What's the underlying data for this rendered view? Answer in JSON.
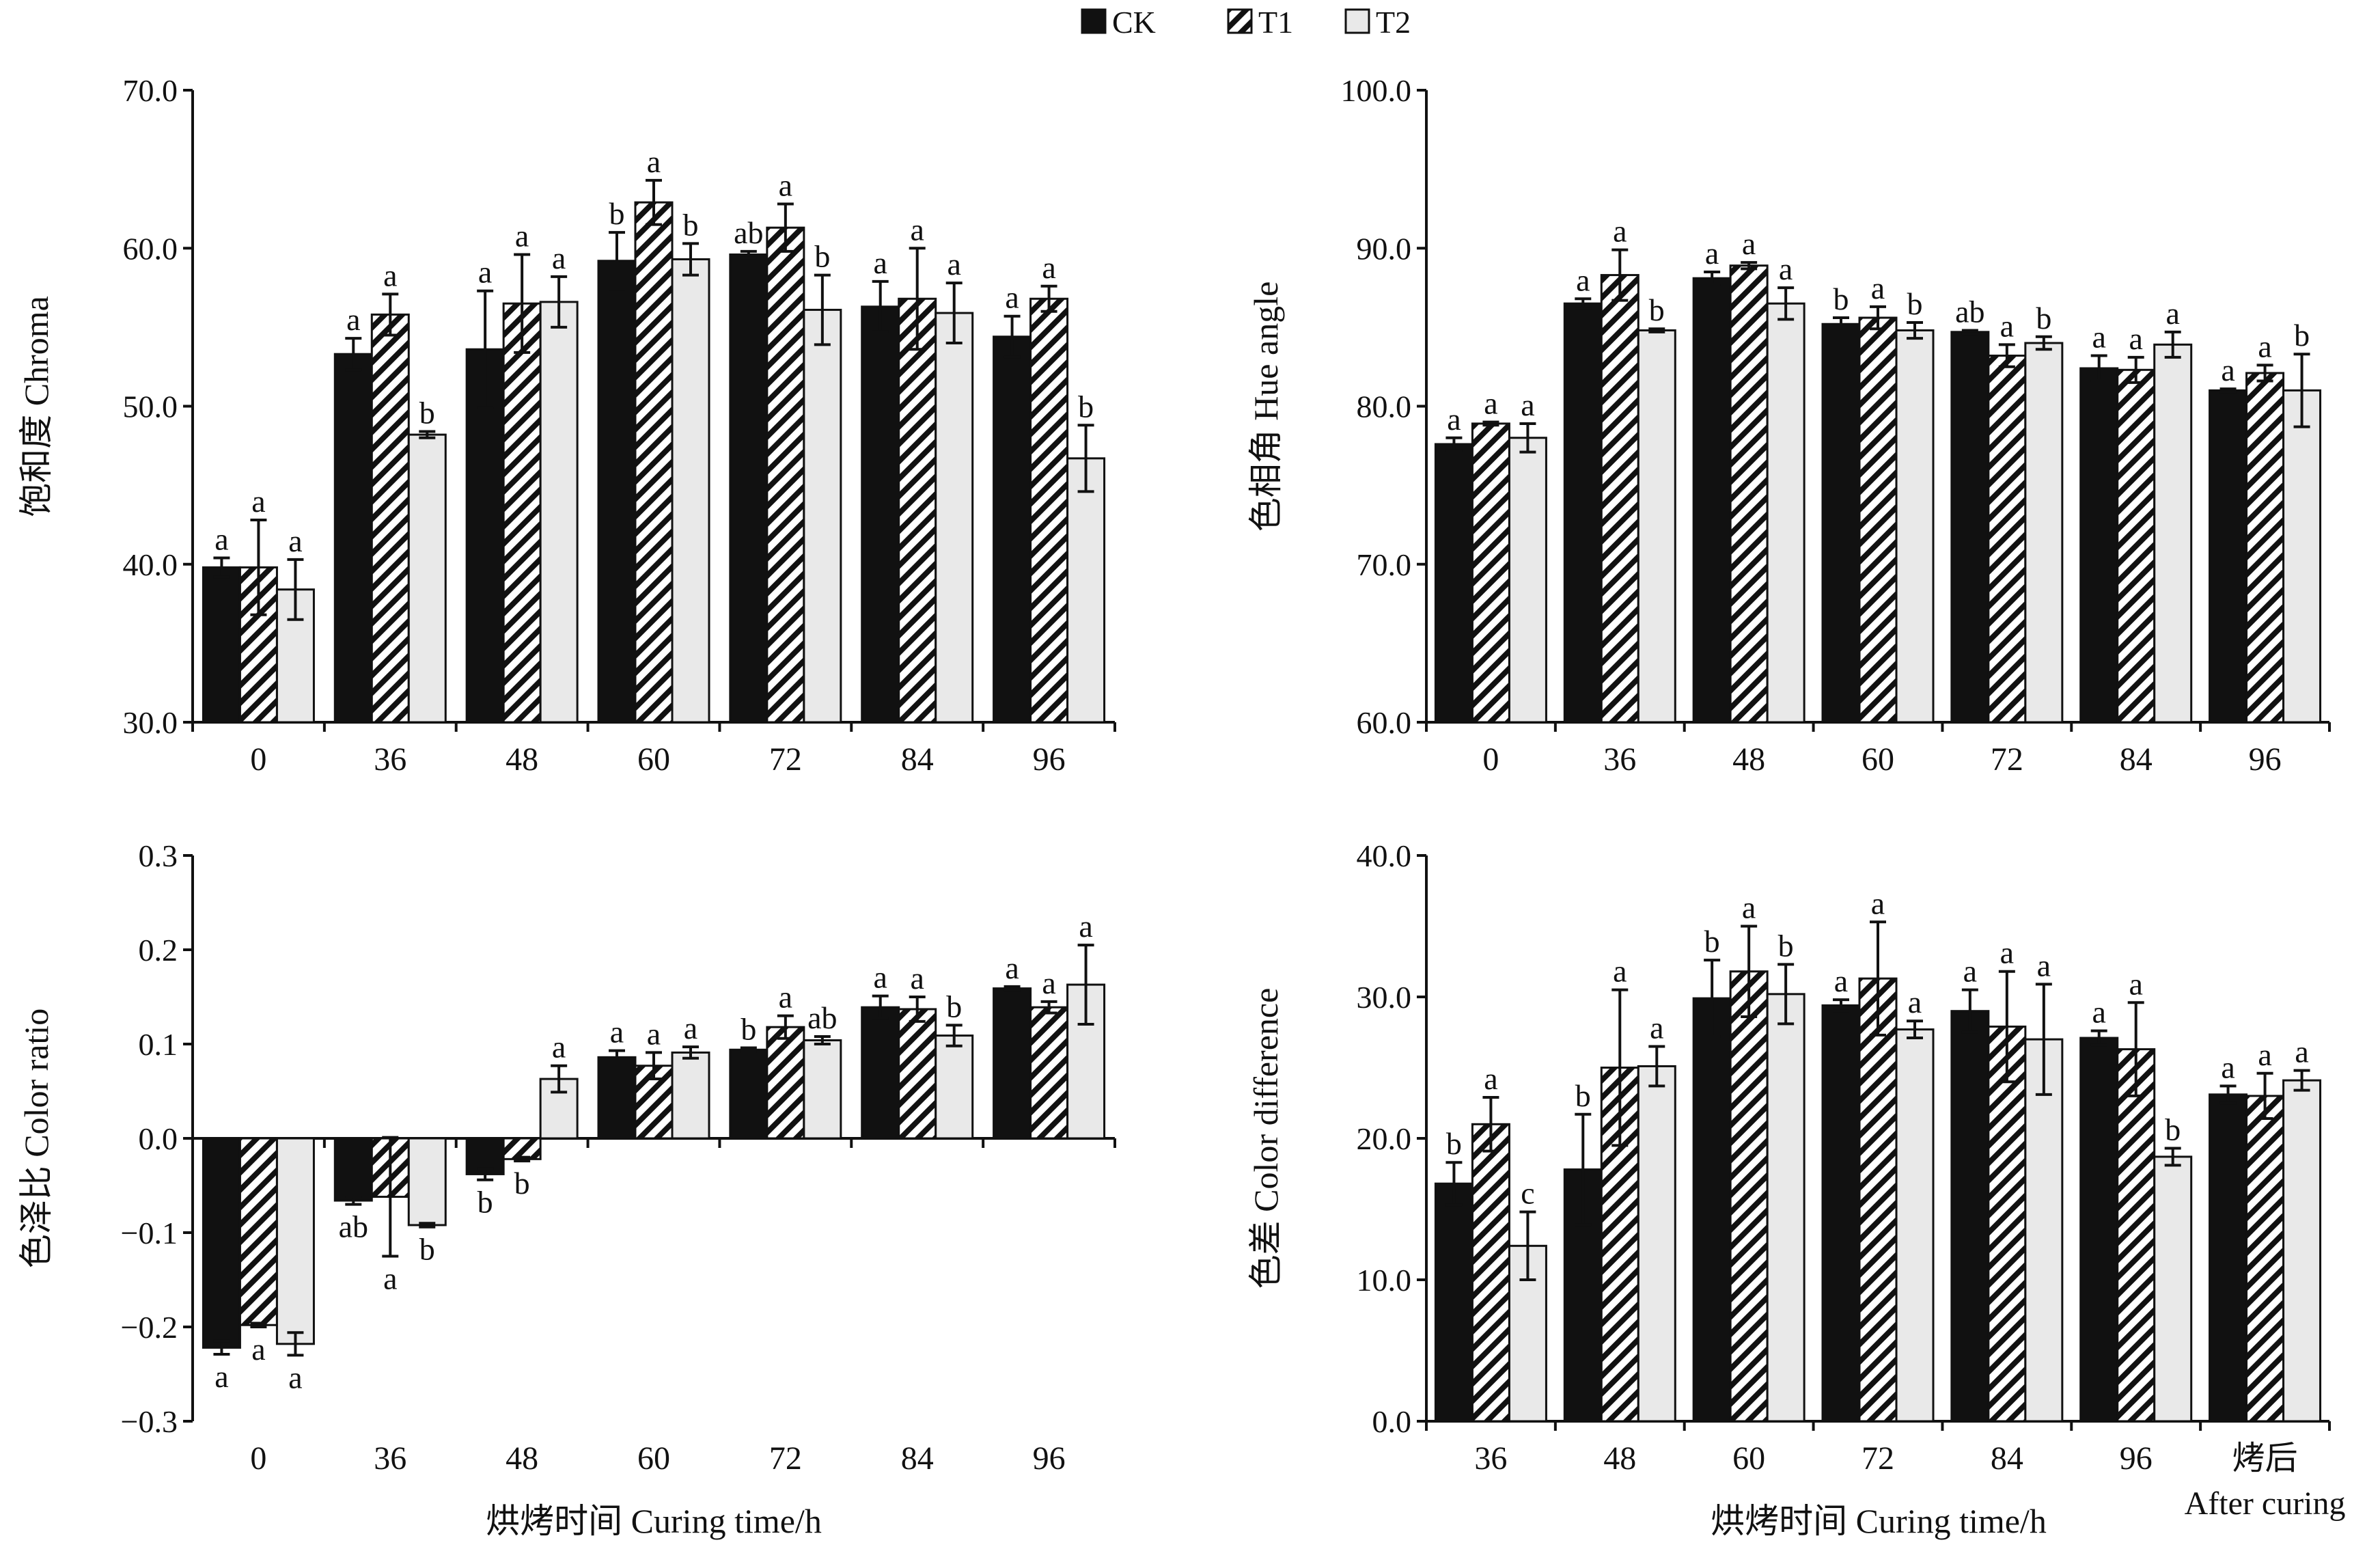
{
  "legend": {
    "placement": "top-center",
    "items": [
      {
        "name": "CK",
        "pattern": "solid"
      },
      {
        "name": "T1",
        "pattern": "hatch"
      },
      {
        "name": "T2",
        "pattern": "light"
      }
    ]
  },
  "colors": {
    "ck": "#111111",
    "t2": "#e9e9e9",
    "axis": "#111111"
  },
  "chart_data": [
    {
      "type": "bar",
      "ylabel": "饱和度  Chroma",
      "ylim": [
        30,
        70
      ],
      "yticks": [
        "30.0",
        "40.0",
        "50.0",
        "60.0",
        "70.0"
      ],
      "yticks_values": [
        30,
        40,
        50,
        60,
        70
      ],
      "categories": [
        "0",
        "36",
        "48",
        "60",
        "72",
        "84",
        "96"
      ],
      "xlabel": "",
      "series": [
        {
          "name": "CK",
          "values": [
            39.8,
            53.3,
            53.6,
            59.2,
            59.6,
            56.3,
            54.4
          ],
          "errors": [
            0.6,
            1.0,
            3.7,
            1.8,
            0.2,
            1.6,
            1.3
          ],
          "letters": [
            "a",
            "a",
            "a",
            "b",
            "ab",
            "a",
            "a"
          ]
        },
        {
          "name": "T1",
          "values": [
            39.8,
            55.8,
            56.5,
            62.9,
            61.3,
            56.8,
            56.8
          ],
          "errors": [
            3.0,
            1.3,
            3.1,
            1.4,
            1.5,
            3.2,
            0.8
          ],
          "letters": [
            "a",
            "a",
            "a",
            "a",
            "a",
            "a",
            "a"
          ]
        },
        {
          "name": "T2",
          "values": [
            38.4,
            48.2,
            56.6,
            59.3,
            56.1,
            55.9,
            46.7
          ],
          "errors": [
            1.9,
            0.2,
            1.6,
            1.0,
            2.2,
            1.9,
            2.1
          ],
          "letters": [
            "a",
            "b",
            "a",
            "b",
            "b",
            "a",
            "b"
          ]
        }
      ]
    },
    {
      "type": "bar",
      "ylabel": "色相角  Hue angle",
      "ylim": [
        60,
        100
      ],
      "yticks": [
        "60.0",
        "70.0",
        "80.0",
        "90.0",
        "100.0"
      ],
      "yticks_values": [
        60,
        70,
        80,
        90,
        100
      ],
      "categories": [
        "0",
        "36",
        "48",
        "60",
        "72",
        "84",
        "96"
      ],
      "xlabel": "",
      "series": [
        {
          "name": "CK",
          "values": [
            77.6,
            86.5,
            88.1,
            85.2,
            84.7,
            82.4,
            81.0
          ],
          "errors": [
            0.4,
            0.3,
            0.4,
            0.4,
            0.1,
            0.8,
            0.1
          ],
          "letters": [
            "a",
            "a",
            "a",
            "b",
            "ab",
            "a",
            "a"
          ]
        },
        {
          "name": "T1",
          "values": [
            78.9,
            88.3,
            88.9,
            85.6,
            83.2,
            82.3,
            82.1
          ],
          "errors": [
            0.1,
            1.6,
            0.2,
            0.7,
            0.7,
            0.8,
            0.5
          ],
          "letters": [
            "a",
            "a",
            "a",
            "a",
            "a",
            "a",
            "a"
          ]
        },
        {
          "name": "T2",
          "values": [
            78.0,
            84.8,
            86.5,
            84.8,
            84.0,
            83.9,
            81.0
          ],
          "errors": [
            0.9,
            0.1,
            1.0,
            0.5,
            0.4,
            0.8,
            2.3
          ],
          "letters": [
            "a",
            "b",
            "a",
            "b",
            "b",
            "a",
            "b"
          ]
        }
      ]
    },
    {
      "type": "bar",
      "ylabel": "色泽比  Color ratio",
      "ylim": [
        -0.3,
        0.3
      ],
      "yticks": [
        "−0.3",
        "−0.2",
        "−0.1",
        "0.0",
        "0.1",
        "0.2",
        "0.3"
      ],
      "yticks_values": [
        -0.3,
        -0.2,
        -0.1,
        0.0,
        0.1,
        0.2,
        0.3
      ],
      "categories": [
        "0",
        "36",
        "48",
        "60",
        "72",
        "84",
        "96"
      ],
      "xlabel": "烘烤时间 Curing time/h",
      "series": [
        {
          "name": "CK",
          "values": [
            -0.222,
            -0.066,
            -0.038,
            0.086,
            0.094,
            0.139,
            0.159
          ],
          "errors": [
            0.007,
            0.004,
            0.006,
            0.007,
            0.002,
            0.012,
            0.002
          ],
          "letters": [
            "a",
            "ab",
            "b",
            "a",
            "b",
            "a",
            "a"
          ]
        },
        {
          "name": "T1",
          "values": [
            -0.198,
            -0.062,
            -0.022,
            0.077,
            0.118,
            0.137,
            0.139
          ],
          "errors": [
            0.002,
            0.063,
            0.002,
            0.014,
            0.012,
            0.013,
            0.006
          ],
          "letters": [
            "a",
            "a",
            "b",
            "a",
            "a",
            "a",
            "a"
          ]
        },
        {
          "name": "T2",
          "values": [
            -0.218,
            -0.092,
            0.063,
            0.091,
            0.104,
            0.109,
            0.163
          ],
          "errors": [
            0.012,
            0.002,
            0.014,
            0.006,
            0.004,
            0.011,
            0.042
          ],
          "letters": [
            "a",
            "b",
            "a",
            "a",
            "ab",
            "b",
            "a"
          ]
        }
      ]
    },
    {
      "type": "bar",
      "ylabel": "色差  Color difference",
      "ylim": [
        0,
        40
      ],
      "yticks": [
        "0.0",
        "10.0",
        "20.0",
        "30.0",
        "40.0"
      ],
      "yticks_values": [
        0,
        10,
        20,
        30,
        40
      ],
      "categories": [
        "36",
        "48",
        "60",
        "72",
        "84",
        "96",
        "烤后|After curing"
      ],
      "xlabel": "烘烤时间 Curing time/h",
      "series": [
        {
          "name": "CK",
          "values": [
            16.8,
            17.8,
            29.9,
            29.4,
            29.0,
            27.1,
            23.1
          ],
          "errors": [
            1.5,
            3.9,
            2.7,
            0.4,
            1.5,
            0.5,
            0.6
          ],
          "letters": [
            "b",
            "b",
            "b",
            "a",
            "a",
            "a",
            "a"
          ]
        },
        {
          "name": "T1",
          "values": [
            21.0,
            25.0,
            31.8,
            31.3,
            27.9,
            26.3,
            23.0
          ],
          "errors": [
            1.9,
            5.5,
            3.2,
            4.0,
            3.9,
            3.3,
            1.6
          ],
          "letters": [
            "a",
            "a",
            "a",
            "a",
            "a",
            "a",
            "a"
          ]
        },
        {
          "name": "T2",
          "values": [
            12.4,
            25.1,
            30.2,
            27.7,
            27.0,
            18.7,
            24.1
          ],
          "errors": [
            2.4,
            1.4,
            2.1,
            0.6,
            3.9,
            0.6,
            0.7
          ],
          "letters": [
            "c",
            "a",
            "b",
            "a",
            "a",
            "b",
            "a"
          ]
        }
      ]
    }
  ]
}
